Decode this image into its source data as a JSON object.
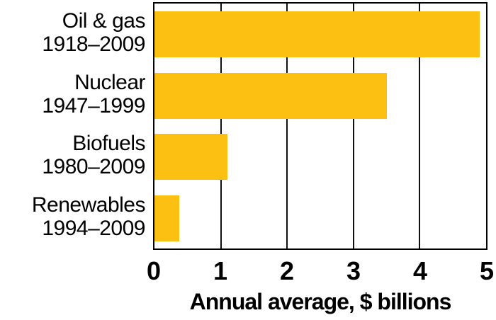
{
  "chart_data": {
    "type": "bar",
    "orientation": "horizontal",
    "title": "",
    "xlabel": "Annual average, $ billions",
    "xlim": [
      0,
      5
    ],
    "xticks": [
      0,
      1,
      2,
      3,
      4,
      5
    ],
    "grid": true,
    "legend_position": "none",
    "bar_color": "#FCC013",
    "gridline_color": "#111111",
    "categories": [
      "Oil & gas",
      "Nuclear",
      "Biofuels",
      "Renewables"
    ],
    "category_years": [
      "1918–2009",
      "1947–1999",
      "1980–2009",
      "1994–2009"
    ],
    "values": [
      4.9,
      3.5,
      1.1,
      0.37
    ]
  }
}
